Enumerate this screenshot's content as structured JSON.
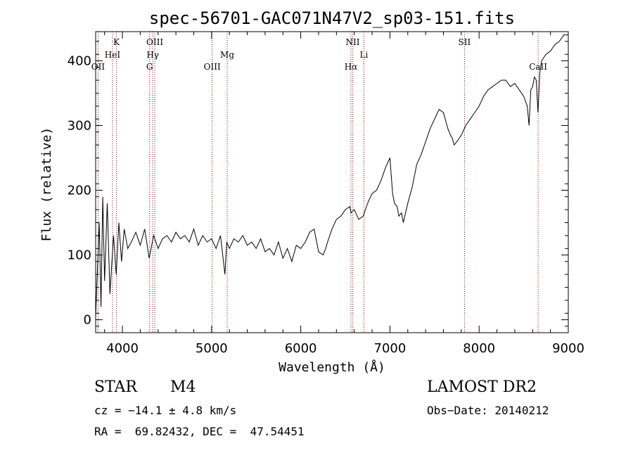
{
  "chart_data": {
    "type": "line",
    "title": "spec-56701-GAC071N47V2_sp03-151.fits",
    "xlabel": "Wavelength (Å)",
    "ylabel": "Flux (relative)",
    "xlim": [
      3700,
      9000
    ],
    "ylim": [
      -20,
      445
    ],
    "xticks": [
      4000,
      5000,
      6000,
      7000,
      8000,
      9000
    ],
    "yticks": [
      0,
      100,
      200,
      300,
      400
    ],
    "line_color": "#000000",
    "marker_color": "#8b0000",
    "series": [
      {
        "x": [
          3700,
          3740,
          3760,
          3780,
          3800,
          3830,
          3860,
          3900,
          3930,
          3960,
          3990,
          4020,
          4060,
          4100,
          4150,
          4200,
          4250,
          4300,
          4350,
          4400,
          4450,
          4500,
          4550,
          4600,
          4650,
          4700,
          4750,
          4800,
          4850,
          4900,
          4950,
          5000,
          5050,
          5100,
          5150,
          5170,
          5200,
          5250,
          5300,
          5350,
          5400,
          5450,
          5500,
          5550,
          5600,
          5650,
          5700,
          5750,
          5800,
          5850,
          5900,
          5950,
          6000,
          6050,
          6100,
          6150,
          6200,
          6250,
          6280,
          6300,
          6350,
          6400,
          6450,
          6500,
          6550,
          6563,
          6600,
          6650,
          6700,
          6750,
          6800,
          6850,
          6900,
          6950,
          7000,
          7030,
          7050,
          7080,
          7100,
          7130,
          7150,
          7200,
          7250,
          7300,
          7350,
          7400,
          7450,
          7500,
          7550,
          7600,
          7620,
          7650,
          7680,
          7700,
          7720,
          7750,
          7800,
          7850,
          7900,
          7950,
          8000,
          8050,
          8100,
          8150,
          8200,
          8250,
          8300,
          8350,
          8400,
          8450,
          8500,
          8540,
          8560,
          8580,
          8600,
          8620,
          8640,
          8660,
          8680,
          8700,
          8750,
          8800,
          8850,
          8900,
          8950,
          9000
        ],
        "y": [
          5,
          150,
          20,
          190,
          60,
          180,
          40,
          130,
          70,
          150,
          90,
          140,
          110,
          120,
          135,
          115,
          140,
          95,
          130,
          110,
          125,
          130,
          120,
          135,
          125,
          130,
          120,
          140,
          115,
          130,
          120,
          125,
          110,
          130,
          70,
          120,
          110,
          125,
          120,
          130,
          115,
          120,
          110,
          125,
          105,
          110,
          100,
          120,
          95,
          110,
          90,
          115,
          110,
          120,
          135,
          140,
          105,
          100,
          110,
          120,
          140,
          155,
          160,
          170,
          175,
          165,
          170,
          155,
          160,
          180,
          195,
          200,
          215,
          235,
          250,
          195,
          180,
          175,
          160,
          165,
          150,
          180,
          205,
          240,
          255,
          275,
          295,
          310,
          325,
          320,
          310,
          295,
          285,
          280,
          270,
          275,
          285,
          300,
          310,
          320,
          330,
          345,
          355,
          360,
          365,
          370,
          370,
          360,
          365,
          355,
          345,
          330,
          300,
          355,
          360,
          375,
          370,
          320,
          380,
          400,
          410,
          415,
          425,
          430,
          440,
          440
        ]
      }
    ],
    "lines": [
      {
        "name": "OII",
        "x": 3727,
        "row": 3
      },
      {
        "name": "HeI",
        "x": 3889,
        "row": 2
      },
      {
        "name": "K",
        "x": 3934,
        "row": 1
      },
      {
        "name": "G",
        "x": 4305,
        "row": 3
      },
      {
        "name": "Hγ",
        "x": 4340,
        "row": 2
      },
      {
        "name": "OIII",
        "x": 4363,
        "row": 1
      },
      {
        "name": "OIII",
        "x": 5007,
        "row": 3
      },
      {
        "name": "Mg",
        "x": 5175,
        "row": 2
      },
      {
        "name": "Hα",
        "x": 6563,
        "row": 3
      },
      {
        "name": "NII",
        "x": 6583,
        "row": 1
      },
      {
        "name": "Li",
        "x": 6708,
        "row": 2
      },
      {
        "name": "SII",
        "x": 7836,
        "row": 1
      },
      {
        "name": "CaII",
        "x": 8662,
        "row": 3
      }
    ]
  },
  "info": {
    "type_label": "STAR",
    "subclass": "M4",
    "survey": "LAMOST DR2",
    "cz": "cz = −14.1 ± 4.8 km/s",
    "obs_date": "Obs−Date: 20140212",
    "coords": "RA =  69.82432, DEC =  47.54451"
  }
}
